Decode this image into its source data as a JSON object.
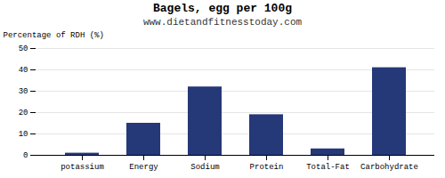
{
  "chart_data": {
    "type": "bar",
    "title": "Bagels, egg per 100g",
    "subtitle": "www.dietandfitnesstoday.com",
    "categories": [
      "potassium",
      "Energy",
      "Sodium",
      "Protein",
      "Total-Fat",
      "Carbohydrate"
    ],
    "values": [
      1,
      15,
      32,
      19,
      3,
      41
    ],
    "color": "#253878",
    "ylabel": "Percentage of RDH (%)",
    "ylim": [
      0,
      50
    ],
    "yticks": [
      0,
      10,
      20,
      30,
      40,
      50
    ],
    "grid": true
  }
}
